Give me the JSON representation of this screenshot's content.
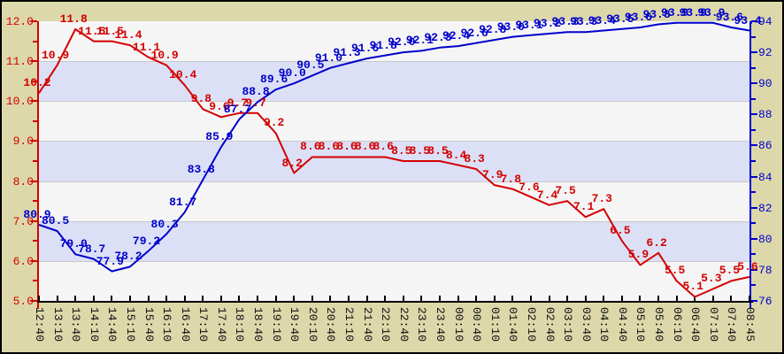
{
  "chart_data": {
    "type": "line",
    "title": "",
    "xlabel": "",
    "ylabel_left": "",
    "ylabel_right": "",
    "background_color": "#dcd8aa",
    "band_colors": [
      "#f5f5f5",
      "#dce0f6"
    ],
    "x_labels": [
      "12:40",
      "13:10",
      "13:40",
      "14:10",
      "14:40",
      "15:10",
      "15:40",
      "16:10",
      "16:40",
      "17:10",
      "17:40",
      "18:10",
      "18:40",
      "19:10",
      "19:40",
      "20:10",
      "20:40",
      "21:10",
      "21:40",
      "22:10",
      "22:40",
      "23:10",
      "23:40",
      "00:10",
      "00:40",
      "01:10",
      "01:40",
      "02:10",
      "02:40",
      "03:10",
      "03:40",
      "04:10",
      "04:40",
      "05:10",
      "05:40",
      "06:10",
      "06:40",
      "07:10",
      "07:40",
      "08:45"
    ],
    "left_axis": {
      "min": 5.0,
      "max": 12.0,
      "major_step": 1.0,
      "minor_step": 0.5,
      "color": "#d40000",
      "tick_labels": [
        "12.0",
        "11.0",
        "10.0",
        "9.0",
        "8.0",
        "7.0",
        "6.0",
        "5.0"
      ]
    },
    "right_axis": {
      "min": 76,
      "max": 94,
      "major_step": 2,
      "minor_step": 1,
      "color": "#0000cc",
      "tick_labels": [
        "94",
        "92",
        "90",
        "88",
        "86",
        "84",
        "82",
        "80",
        "78",
        "76"
      ]
    },
    "series": [
      {
        "name": "red-series",
        "color": "#d40000",
        "axis": "left",
        "values": [
          "10.2",
          "10.9",
          "11.8",
          "11.5",
          "11.5",
          "11.4",
          "11.1",
          "10.9",
          "10.4",
          "9.8",
          "9.6",
          "9.7",
          "9.7",
          "9.2",
          "8.2",
          "8.6",
          "8.6",
          "8.6",
          "8.6",
          "8.6",
          "8.5",
          "8.5",
          "8.5",
          "8.4",
          "8.3",
          "7.9",
          "7.8",
          "7.6",
          "7.4",
          "7.5",
          "7.1",
          "7.3",
          "6.5",
          "5.9",
          "6.2",
          "5.5",
          "5.1",
          "5.3",
          "5.5",
          "5.6"
        ]
      },
      {
        "name": "blue-series",
        "color": "#0000cc",
        "axis": "right",
        "values": [
          "80.9",
          "80.5",
          "79.0",
          "78.7",
          "77.9",
          "78.2",
          "79.2",
          "80.3",
          "81.7",
          "83.8",
          "85.9",
          "87.7",
          "88.8",
          "89.6",
          "90.0",
          "90.5",
          "91.0",
          "91.3",
          "91.6",
          "91.8",
          "92.0",
          "92.1",
          "92.3",
          "92.4",
          "92.6",
          "92.8",
          "93.0",
          "93.1",
          "93.2",
          "93.3",
          "93.3",
          "93.4",
          "93.5",
          "93.6",
          "93.8",
          "93.9",
          "93.9",
          "93.9",
          "93.6",
          "93.4"
        ]
      }
    ],
    "legend": "none",
    "grid": "horizontal-bands"
  }
}
